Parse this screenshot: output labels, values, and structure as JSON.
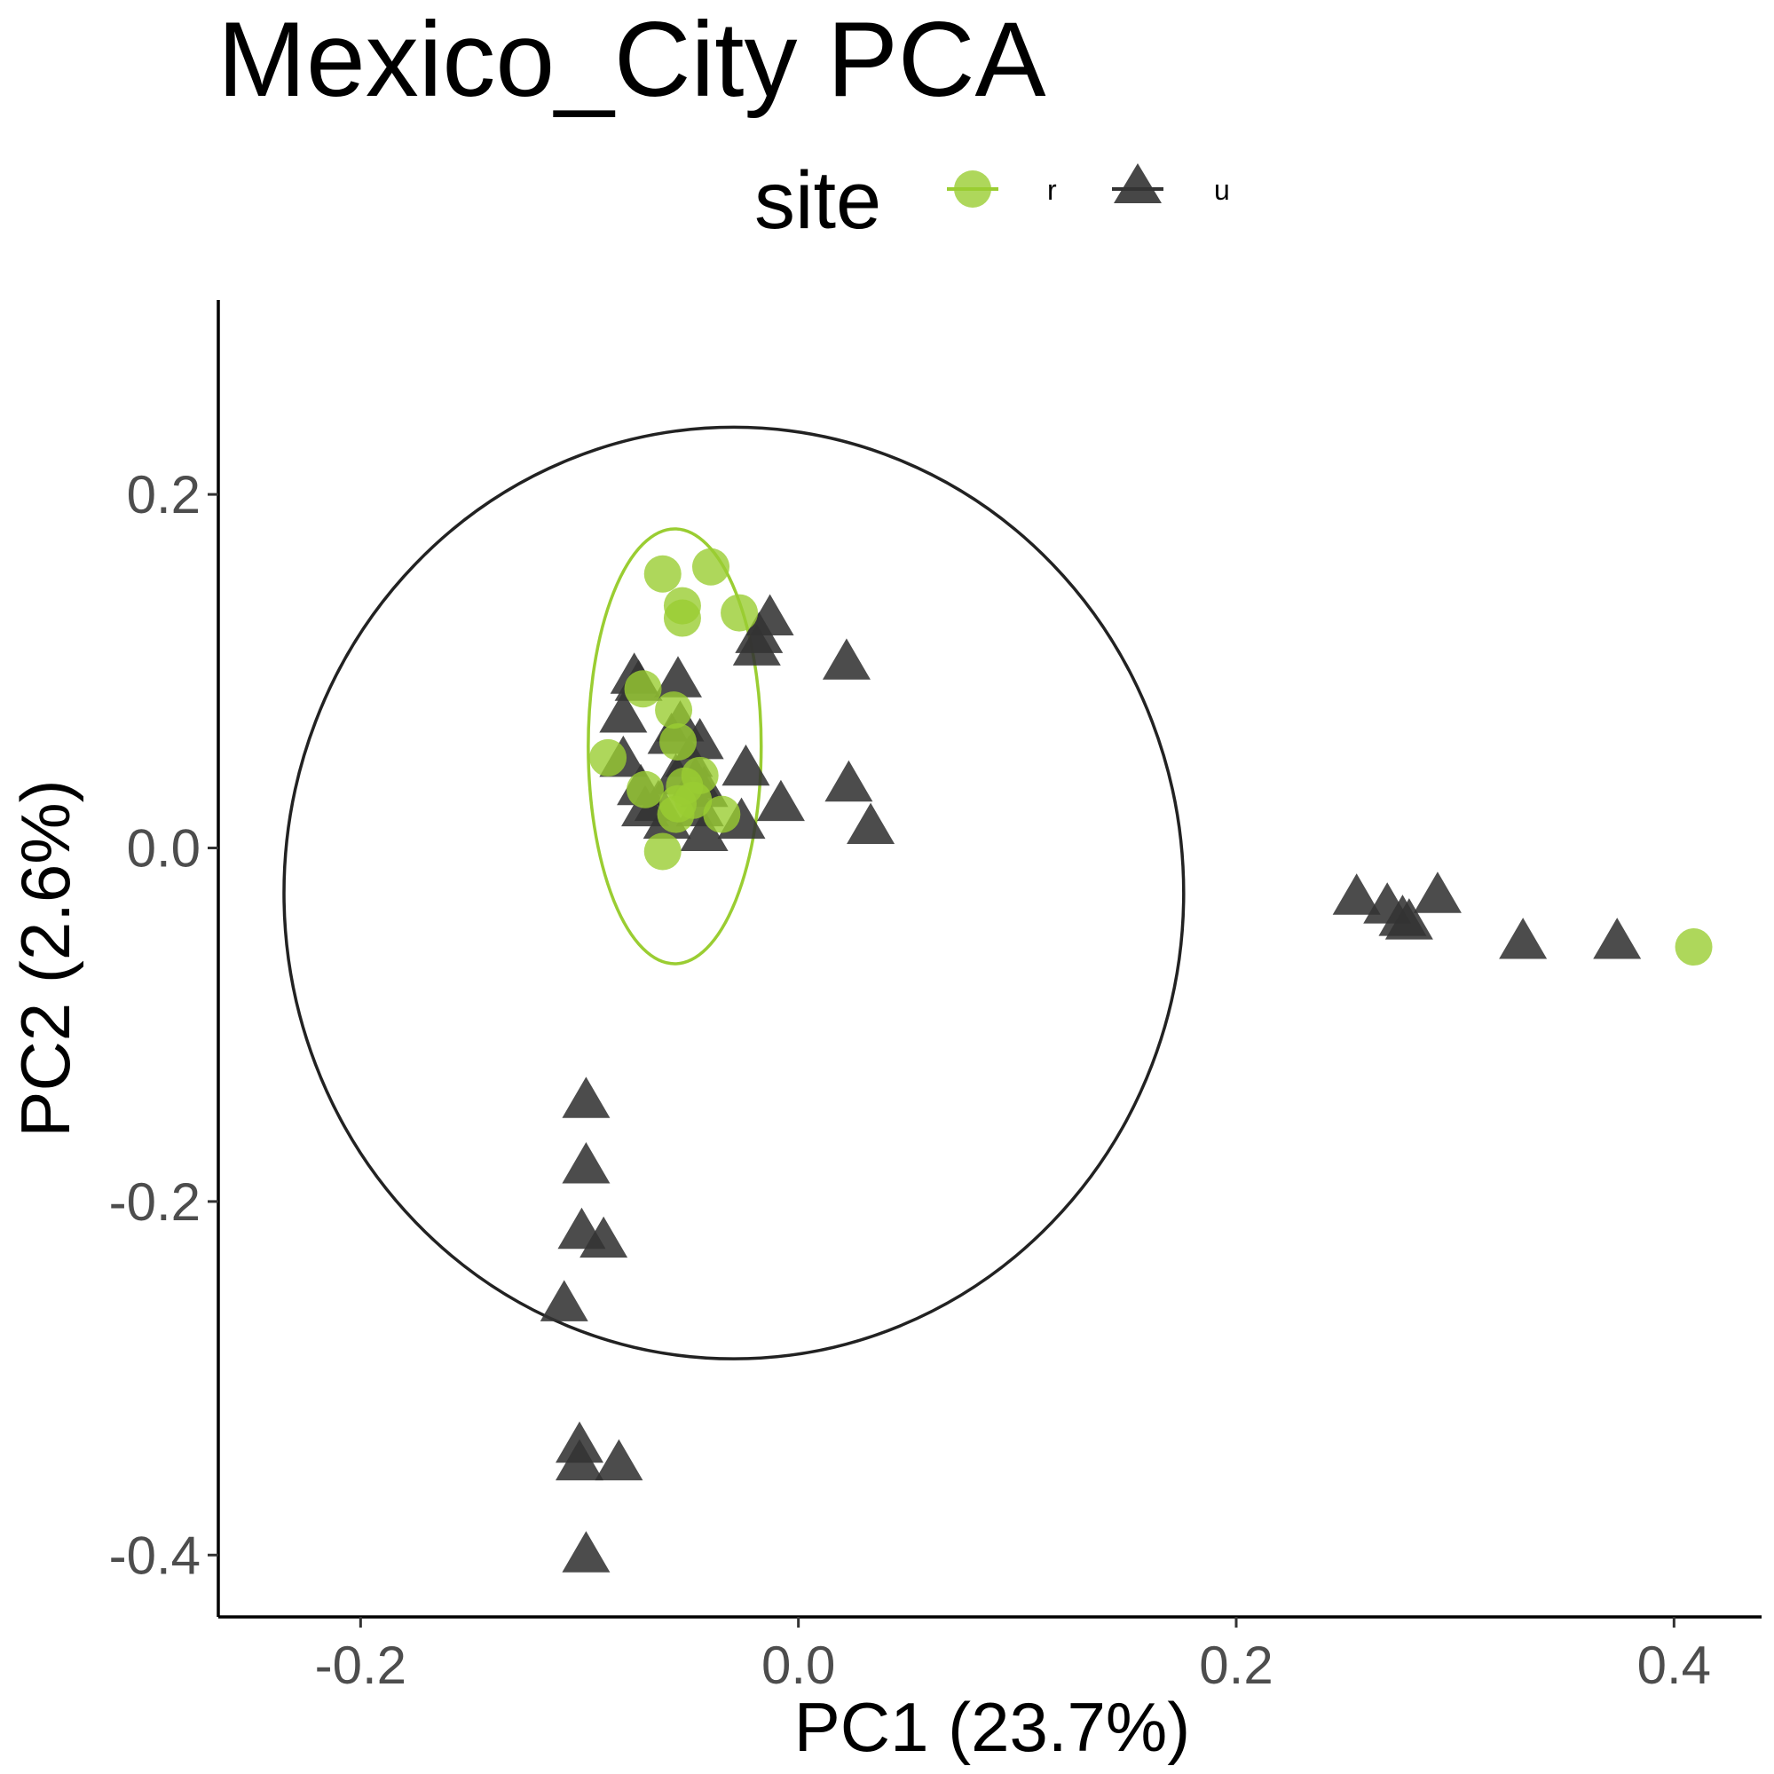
{
  "chart_data": {
    "type": "scatter",
    "title": "Mexico_City PCA",
    "xlabel": "PC1 (23.7%)",
    "ylabel": "PC2 (2.6%)",
    "xlim": [
      -0.265,
      0.44
    ],
    "ylim": [
      -0.435,
      0.31
    ],
    "x_ticks": [
      -0.2,
      0.0,
      0.2,
      0.4
    ],
    "x_tick_labels": [
      "-0.2",
      "0.0",
      "0.2",
      "0.4"
    ],
    "y_ticks": [
      -0.4,
      -0.2,
      0.0,
      0.2
    ],
    "y_tick_labels": [
      "-0.4",
      "-0.2",
      "0.0",
      "0.2"
    ],
    "grid": false,
    "legend": {
      "title": "site",
      "position": "top",
      "entries": [
        {
          "label": "r",
          "shape": "circle",
          "color": "#9acd32"
        },
        {
          "label": "u",
          "shape": "triangle",
          "color": "#333333"
        }
      ]
    },
    "series": [
      {
        "name": "r",
        "shape": "circle",
        "color": "#9acd32",
        "points": [
          [
            -0.062,
            0.155
          ],
          [
            -0.04,
            0.159
          ],
          [
            -0.053,
            0.137
          ],
          [
            -0.053,
            0.13
          ],
          [
            -0.027,
            0.133
          ],
          [
            -0.057,
            0.078
          ],
          [
            -0.055,
            0.06
          ],
          [
            -0.087,
            0.051
          ],
          [
            -0.045,
            0.041
          ],
          [
            -0.052,
            0.035
          ],
          [
            -0.07,
            0.033
          ],
          [
            -0.048,
            0.027
          ],
          [
            -0.055,
            0.025
          ],
          [
            -0.035,
            0.019
          ],
          [
            -0.056,
            0.019
          ],
          [
            -0.062,
            -0.002
          ],
          [
            -0.071,
            0.09
          ],
          [
            0.409,
            -0.056
          ]
        ],
        "ellipse": {
          "cx": -0.0565,
          "cy": 0.0575,
          "rx": 0.0395,
          "ry": 0.123
        }
      },
      {
        "name": "u",
        "shape": "triangle",
        "color": "#333333",
        "points": [
          [
            -0.013,
            0.13
          ],
          [
            -0.018,
            0.12
          ],
          [
            -0.019,
            0.113
          ],
          [
            0.022,
            0.105
          ],
          [
            -0.075,
            0.097
          ],
          [
            -0.073,
            0.093
          ],
          [
            -0.055,
            0.095
          ],
          [
            -0.08,
            0.075
          ],
          [
            -0.054,
            0.07
          ],
          [
            -0.058,
            0.063
          ],
          [
            -0.045,
            0.06
          ],
          [
            -0.08,
            0.05
          ],
          [
            -0.024,
            0.045
          ],
          [
            -0.05,
            0.05
          ],
          [
            -0.047,
            0.038
          ],
          [
            -0.043,
            0.033
          ],
          [
            -0.056,
            0.04
          ],
          [
            -0.072,
            0.034
          ],
          [
            -0.064,
            0.025
          ],
          [
            -0.07,
            0.022
          ],
          [
            -0.06,
            0.015
          ],
          [
            -0.045,
            0.022
          ],
          [
            -0.043,
            0.008
          ],
          [
            -0.026,
            0.015
          ],
          [
            -0.008,
            0.025
          ],
          [
            0.023,
            0.036
          ],
          [
            0.033,
            0.012
          ],
          [
            -0.097,
            -0.143
          ],
          [
            -0.097,
            -0.18
          ],
          [
            -0.099,
            -0.217
          ],
          [
            -0.089,
            -0.222
          ],
          [
            -0.107,
            -0.258
          ],
          [
            -0.1,
            -0.338
          ],
          [
            -0.1,
            -0.348
          ],
          [
            -0.082,
            -0.348
          ],
          [
            -0.097,
            -0.4
          ],
          [
            0.255,
            -0.028
          ],
          [
            0.269,
            -0.033
          ],
          [
            0.276,
            -0.04
          ],
          [
            0.279,
            -0.042
          ],
          [
            0.292,
            -0.027
          ],
          [
            0.331,
            -0.053
          ],
          [
            0.374,
            -0.053
          ]
        ],
        "ellipse": {
          "cx": -0.0295,
          "cy": -0.0255,
          "rx": 0.2055,
          "ry": 0.2635
        }
      }
    ]
  }
}
